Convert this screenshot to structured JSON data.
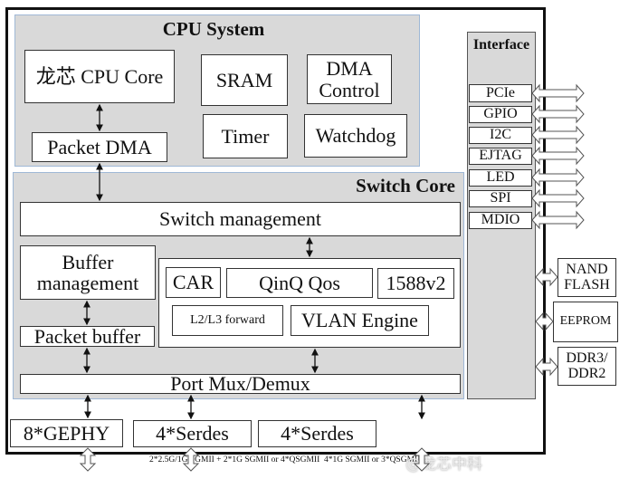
{
  "cpu_system": {
    "title": "CPU System",
    "cpu_core": "龙芯 CPU Core",
    "sram": "SRAM",
    "dma_control": "DMA Control",
    "timer": "Timer",
    "watchdog": "Watchdog",
    "packet_dma": "Packet DMA"
  },
  "switch_core": {
    "title": "Switch Core",
    "switch_management": "Switch management",
    "buffer_management": "Buffer management",
    "packet_buffer": "Packet buffer",
    "car": "CAR",
    "qinq_qos": "QinQ Qos",
    "ptp": "1588v2",
    "l2l3_forward": "L2/L3 forward",
    "vlan_engine": "VLAN Engine",
    "port_mux": "Port Mux/Demux"
  },
  "interface": {
    "title": "Interface",
    "items": [
      "PCIe",
      "GPIO",
      "I2C",
      "EJTAG",
      "LED",
      "SPI",
      "MDIO"
    ]
  },
  "external": {
    "nand_flash": "NAND FLASH",
    "eeprom": "EEPROM",
    "ddr": "DDR3/ DDR2"
  },
  "phy": {
    "gephy": "8*GEPHY",
    "serdes1": "4*Serdes",
    "serdes2": "4*Serdes",
    "serdes1_note": "2*2.5G/1G SGMII + 2*1G SGMII or 4*QSGMII",
    "serdes2_note": "4*1G SGMII or 3*QSGMII"
  },
  "watermark": "@龙芯中科"
}
